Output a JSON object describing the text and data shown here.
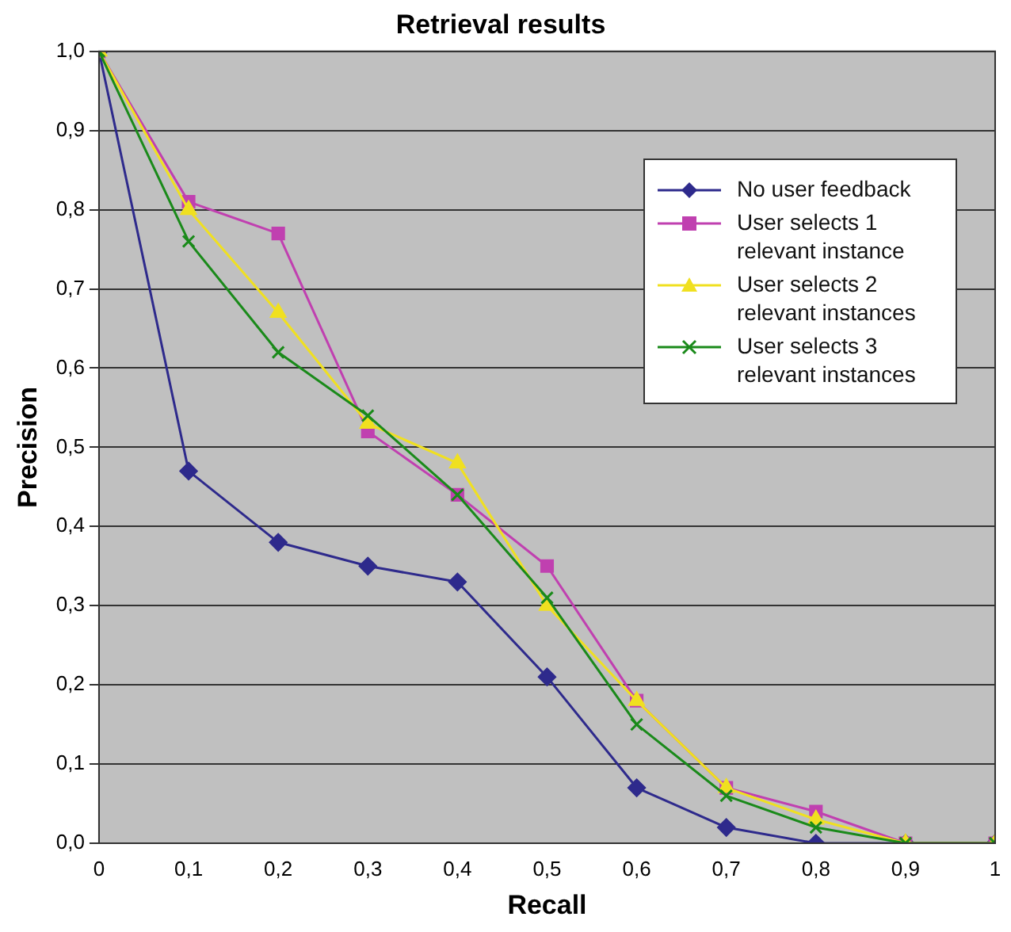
{
  "chart_data": {
    "type": "line",
    "title": "Retrieval results",
    "xlabel": "Recall",
    "ylabel": "Precision",
    "x": [
      0,
      0.1,
      0.2,
      0.3,
      0.4,
      0.5,
      0.6,
      0.7,
      0.8,
      0.9,
      1
    ],
    "series": [
      {
        "name": "No user feedback",
        "color": "#2e2a8c",
        "marker": "diamond",
        "values": [
          1,
          0.47,
          0.38,
          0.35,
          0.33,
          0.21,
          0.07,
          0.02,
          0.0,
          0,
          0
        ]
      },
      {
        "name": "User selects 1 relevant instance",
        "color": "#c040b0",
        "marker": "square",
        "values": [
          1,
          0.81,
          0.77,
          0.52,
          0.44,
          0.35,
          0.18,
          0.07,
          0.04,
          0,
          0
        ]
      },
      {
        "name": "User selects 2 relevant instances",
        "color": "#f0e020",
        "marker": "triangle",
        "values": [
          1,
          0.8,
          0.67,
          0.53,
          0.48,
          0.3,
          0.18,
          0.07,
          0.03,
          0,
          0
        ]
      },
      {
        "name": "User selects 3 relevant instances",
        "color": "#1a8a1a",
        "marker": "cross",
        "values": [
          1,
          0.76,
          0.62,
          0.54,
          0.44,
          0.31,
          0.15,
          0.06,
          0.02,
          0,
          0
        ]
      }
    ],
    "xlim": [
      0,
      1
    ],
    "xticks": [
      0,
      {
        "value": 0.1,
        "label": "0,1"
      },
      {
        "value": 0.2,
        "label": "0,2"
      },
      {
        "value": 0.3,
        "label": "0,3"
      },
      {
        "value": 0.4,
        "label": "0,4"
      },
      {
        "value": 0.5,
        "label": "0,5"
      },
      {
        "value": 0.6,
        "label": "0,6"
      },
      {
        "value": 0.7,
        "label": "0,7"
      },
      {
        "value": 0.8,
        "label": "0,8"
      },
      {
        "value": 0.9,
        "label": "0,9"
      },
      1
    ],
    "ylim": [
      0,
      1
    ],
    "yticks": [
      {
        "value": 0,
        "label": "0,0"
      },
      {
        "value": 0.1,
        "label": "0,1"
      },
      {
        "value": 0.2,
        "label": "0,2"
      },
      {
        "value": 0.3,
        "label": "0,3"
      },
      {
        "value": 0.4,
        "label": "0,4"
      },
      {
        "value": 0.5,
        "label": "0,5"
      },
      {
        "value": 0.6,
        "label": "0,6"
      },
      {
        "value": 0.7,
        "label": "0,7"
      },
      {
        "value": 0.8,
        "label": "0,8"
      },
      {
        "value": 0.9,
        "label": "0,9"
      },
      {
        "value": 1,
        "label": "1,0"
      }
    ],
    "grid": "y",
    "legend": "top right",
    "line_style": "solid"
  }
}
